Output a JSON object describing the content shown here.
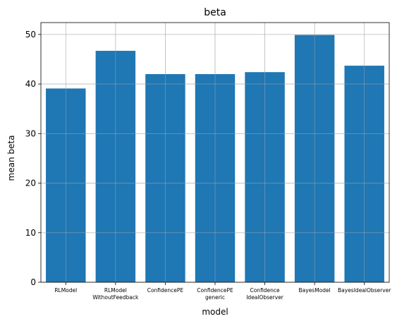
{
  "chart_data": {
    "type": "bar",
    "title": "beta",
    "xlabel": "model",
    "ylabel": "mean beta",
    "categories": [
      [
        "RLModel"
      ],
      [
        "RLModel",
        "WithoutFeedback"
      ],
      [
        "ConfidencePE"
      ],
      [
        "ConfidencePE",
        "generic"
      ],
      [
        "Confidence",
        "IdealObserver"
      ],
      [
        "BayesModel"
      ],
      [
        "BayesIdealObserver"
      ]
    ],
    "values": [
      39.1,
      46.7,
      42.0,
      42.0,
      42.4,
      49.9,
      43.7
    ],
    "ylim": [
      0,
      52.4
    ],
    "yticks": [
      0,
      10,
      20,
      30,
      40,
      50
    ],
    "grid": true,
    "bar_color": "#1f77b4",
    "grid_color": "#b0b0b0"
  }
}
